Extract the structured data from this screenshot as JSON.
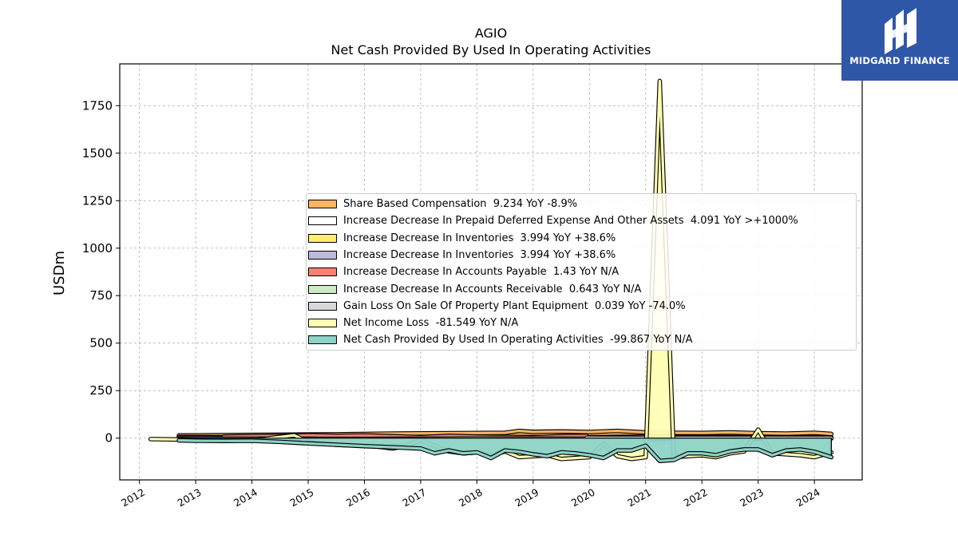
{
  "brand": {
    "name": "MIDGARD FINANCE",
    "color": "#2f57a8"
  },
  "chart_data": {
    "type": "area",
    "title": "AGIO",
    "subtitle": "Net Cash Provided By Used In Operating Activities",
    "xlabel": "",
    "ylabel": "USDm",
    "xlim": [
      2011.65,
      2024.85
    ],
    "ylim": [
      -220,
      1970
    ],
    "yticks": [
      0,
      250,
      500,
      750,
      1000,
      1250,
      1500,
      1750
    ],
    "xticks": [
      "2012",
      "2013",
      "2014",
      "2015",
      "2016",
      "2017",
      "2018",
      "2019",
      "2020",
      "2021",
      "2022",
      "2023",
      "2024"
    ],
    "grid": true,
    "legend_position": "center-right",
    "series": [
      {
        "name": "Share Based Compensation",
        "legend": "Share Based Compensation  9.234 YoY -8.9%",
        "color": "#fdb462",
        "x": [
          2012.7,
          2013.5,
          2014.5,
          2015.5,
          2016.5,
          2017.5,
          2018.5,
          2018.75,
          2019.0,
          2019.5,
          2020.0,
          2020.5,
          2021.0,
          2021.5,
          2022.0,
          2022.5,
          2023.0,
          2023.5,
          2024.0,
          2024.3
        ],
        "values": [
          14,
          16,
          18,
          20,
          24,
          26,
          28,
          38,
          33,
          35,
          32,
          38,
          30,
          28,
          27,
          30,
          26,
          24,
          28,
          22
        ]
      },
      {
        "name": "Increase Decrease In Prepaid Deferred Expense And Other Assets",
        "legend": "Increase Decrease In Prepaid Deferred Expense And Other Assets  4.091 YoY >+1000%",
        "color": "#ffffff",
        "x": [
          2012.7,
          2014,
          2016,
          2018,
          2020,
          2021,
          2022,
          2023,
          2024.3
        ],
        "values": [
          6,
          5,
          7,
          6,
          5,
          8,
          6,
          5,
          4
        ]
      },
      {
        "name": "Increase Decrease In Inventories",
        "legend": "Increase Decrease In Inventories  3.994 YoY +38.6%",
        "color": "#ffed6f",
        "x": [
          2012.7,
          2014,
          2016,
          2018,
          2020,
          2021,
          2022,
          2023,
          2024.3
        ],
        "values": [
          3,
          2,
          3,
          4,
          3,
          2,
          4,
          3,
          4
        ]
      },
      {
        "name": "Increase Decrease In Inventories",
        "legend": "Increase Decrease In Inventories  3.994 YoY +38.6%",
        "color": "#bebada",
        "x": [
          2012.7,
          2014,
          2016,
          2018,
          2020,
          2021,
          2022,
          2023,
          2024.3
        ],
        "values": [
          3,
          2,
          3,
          4,
          3,
          2,
          4,
          3,
          4
        ]
      },
      {
        "name": "Increase Decrease In Accounts Payable",
        "legend": "Increase Decrease In Accounts Payable  1.43 YoY N/A",
        "color": "#fb8072",
        "x": [
          2013.5,
          2014.0,
          2014.5,
          2015.0,
          2015.5,
          2016.0,
          2016.5,
          2017.0,
          2017.5,
          2018.0,
          2018.5,
          2019.0,
          2019.5,
          2019.95
        ],
        "values": [
          8,
          10,
          12,
          15,
          12,
          14,
          10,
          5,
          12,
          8,
          6,
          4,
          10,
          12
        ]
      },
      {
        "name": "Increase Decrease In Accounts Receivable",
        "legend": "Increase Decrease In Accounts Receivable  0.643 YoY N/A",
        "color": "#ccebc5",
        "x": [
          2012.7,
          2014,
          2016,
          2018,
          2020,
          2021,
          2022,
          2023,
          2024.3
        ],
        "values": [
          -2,
          -3,
          -4,
          -2,
          -3,
          -5,
          -4,
          -3,
          -2
        ]
      },
      {
        "name": "Gain Loss On Sale Of Property Plant Equipment",
        "legend": "Gain Loss On Sale Of Property Plant Equipment  0.039 YoY -74.0%",
        "color": "#d9d9d9",
        "x": [
          2019.95,
          2020.5,
          2021.0,
          2021.5,
          2022.0,
          2022.5,
          2023.0,
          2023.5,
          2024.0,
          2024.3
        ],
        "values": [
          2,
          1,
          1,
          1,
          1,
          1,
          1,
          1,
          1,
          1
        ]
      },
      {
        "name": "Net Income Loss",
        "legend": "Net Income Loss  -81.549 YoY N/A",
        "color": "#ffffb3",
        "x": [
          2012.2,
          2013.0,
          2014.0,
          2014.75,
          2015.0,
          2015.5,
          2016.0,
          2016.25,
          2016.5,
          2016.75,
          2017.0,
          2017.25,
          2017.5,
          2017.75,
          2018.0,
          2018.25,
          2018.5,
          2018.75,
          2019.0,
          2019.25,
          2019.5,
          2019.75,
          2020.0,
          2020.25,
          2020.5,
          2020.75,
          2021.0,
          2021.25,
          2021.5,
          2021.75,
          2022.0,
          2022.25,
          2022.5,
          2022.75,
          2023.0,
          2023.25,
          2023.5,
          2023.75,
          2024.0,
          2024.3
        ],
        "values": [
          -5,
          -8,
          -12,
          15,
          -20,
          -35,
          -40,
          -45,
          -55,
          -40,
          -10,
          -40,
          -70,
          -80,
          -75,
          -90,
          -70,
          -100,
          -95,
          -90,
          -110,
          -105,
          -100,
          -30,
          -95,
          -110,
          -100,
          1880,
          -100,
          -95,
          -90,
          -100,
          -80,
          -70,
          45,
          -80,
          -85,
          -90,
          -100,
          -75
        ]
      },
      {
        "name": "Net Cash Provided By Used In Operating Activities",
        "legend": "Net Cash Provided By Used In Operating Activities  -99.867 YoY N/A",
        "color": "#8dd3c7",
        "x": [
          2012.7,
          2013.0,
          2013.5,
          2014.0,
          2014.5,
          2015.0,
          2015.5,
          2016.0,
          2016.5,
          2017.0,
          2017.25,
          2017.5,
          2017.75,
          2018.0,
          2018.25,
          2018.5,
          2018.75,
          2019.0,
          2019.25,
          2019.5,
          2019.75,
          2020.0,
          2020.25,
          2020.5,
          2020.75,
          2021.0,
          2021.25,
          2021.5,
          2021.75,
          2022.0,
          2022.25,
          2022.5,
          2022.75,
          2023.0,
          2023.25,
          2023.5,
          2023.75,
          2024.0,
          2024.3
        ],
        "values": [
          -12,
          -14,
          -15,
          -14,
          -20,
          -28,
          -35,
          -42,
          -48,
          -55,
          -80,
          -65,
          -80,
          -75,
          -105,
          -65,
          -72,
          -85,
          -95,
          -75,
          -80,
          -90,
          -105,
          -65,
          -65,
          -40,
          -120,
          -115,
          -80,
          -80,
          -90,
          -70,
          -60,
          -60,
          -90,
          -65,
          -60,
          -72,
          -100
        ]
      }
    ]
  }
}
